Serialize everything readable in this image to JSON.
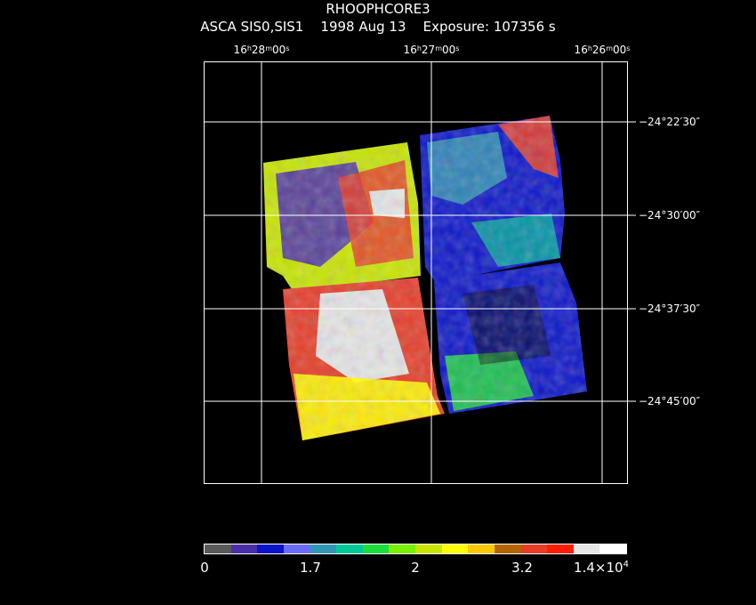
{
  "title": "RHOOPHCORE3",
  "subtitle": "ASCA SIS0,SIS1    1998 Aug 13    Exposure: 107356 s",
  "ra_labels": [
    {
      "h": "16",
      "m": "28",
      "s": "00"
    },
    {
      "h": "16",
      "m": "27",
      "s": "00"
    },
    {
      "h": "16",
      "m": "26",
      "s": "00"
    }
  ],
  "dec_labels": [
    "−24°22′30″",
    "−24°30′00″",
    "−24°37′30″",
    "−24°45′00″"
  ],
  "colorbar": {
    "ticks": [
      "0",
      "1.7",
      "2",
      "3.2"
    ],
    "max_mantissa": "1.4×10",
    "max_exponent": "4",
    "colors": [
      "#5a5a5a",
      "#4b2fa8",
      "#0a14c8",
      "#6a6aff",
      "#3296b4",
      "#00c896",
      "#1edc3c",
      "#78f000",
      "#c8e600",
      "#ffff00",
      "#ffc800",
      "#b46400",
      "#e63c28",
      "#ff1e00",
      "#e6e6e6",
      "#ffffff"
    ]
  },
  "colors": {
    "background": "#000000",
    "frame": "#ffffff"
  }
}
